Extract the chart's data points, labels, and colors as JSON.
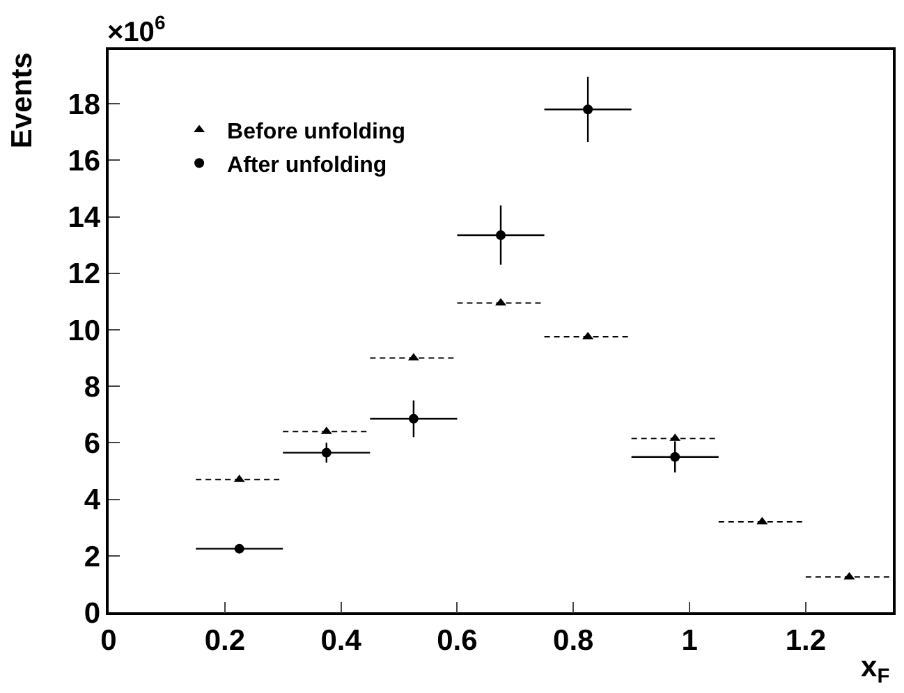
{
  "chart_data": {
    "type": "scatter",
    "xlabel": "x$_{F}$",
    "ylabel": "Events",
    "annotations": [
      "×10$^{6}$"
    ],
    "xlim": [
      0,
      1.35
    ],
    "xticks": [
      0,
      0.2,
      0.4,
      0.6,
      0.8,
      1,
      1.2
    ],
    "ylim": [
      0,
      19.9
    ],
    "yticks": [
      0,
      2,
      4,
      6,
      8,
      10,
      12,
      14,
      16,
      18
    ],
    "legend": "top left",
    "series": [
      {
        "name": "Before unfolding",
        "color": "#000000",
        "marker": "triangle",
        "line_style": "dashed",
        "x": [
          0.225,
          0.375,
          0.525,
          0.675,
          0.825,
          0.975,
          1.125,
          1.275
        ],
        "values": [
          4.7,
          6.4,
          9.0,
          10.95,
          9.75,
          6.15,
          3.2,
          1.25
        ],
        "xerrors": [
          0.075,
          0.075,
          0.075,
          0.075,
          0.075,
          0.075,
          0.075,
          0.075
        ]
      },
      {
        "name": "After unfolding",
        "color": "#000000",
        "marker": "circle",
        "line_style": "solid",
        "x": [
          0.225,
          0.375,
          0.525,
          0.675,
          0.825,
          0.975
        ],
        "values": [
          2.25,
          5.65,
          6.85,
          13.35,
          17.8,
          5.5
        ],
        "xerrors": [
          0.075,
          0.075,
          0.075,
          0.075,
          0.075,
          0.075
        ],
        "errors": [
          0.1,
          0.35,
          0.65,
          1.05,
          1.15,
          0.55
        ]
      }
    ]
  }
}
